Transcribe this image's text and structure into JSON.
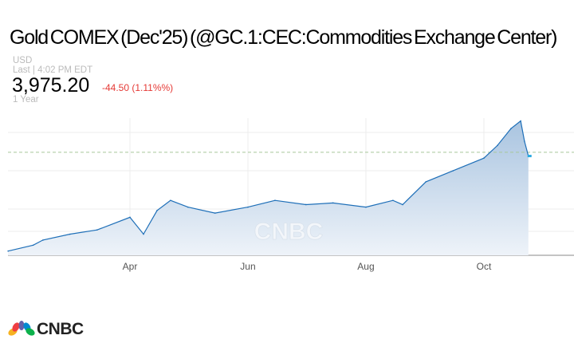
{
  "header": {
    "title": "Gold COMEX (Dec'25) (@GC.1:CEC:Commodities Exchange Center)",
    "currency": "USD",
    "last_label": "Last | 4:02 PM EDT",
    "price": "3,975.20",
    "change": "-44.50 (1.11%%)",
    "range": "1 Year"
  },
  "colors": {
    "line": "#1e6fb8",
    "fill_top": "#a9c4e0",
    "fill_bottom": "#eef3f9",
    "ref_line": "#a8c89a",
    "last_marker": "#29aae1",
    "change": "#e53935"
  },
  "brand": {
    "logo_text": "CNBC",
    "watermark": "CNBC"
  },
  "chart_data": {
    "type": "area",
    "title": "Gold COMEX (Dec'25)",
    "x_ticks": [
      "Apr",
      "Jun",
      "Aug",
      "Oct"
    ],
    "ylim": [
      2800,
      4500
    ],
    "grid": true,
    "reference_line": 4019.7,
    "points": [
      [
        "2025-01-28",
        2850
      ],
      [
        "2025-02-10",
        2920
      ],
      [
        "2025-02-15",
        2980
      ],
      [
        "2025-03-01",
        3050
      ],
      [
        "2025-03-15",
        3100
      ],
      [
        "2025-04-01",
        3250
      ],
      [
        "2025-04-08",
        3050
      ],
      [
        "2025-04-15",
        3330
      ],
      [
        "2025-04-22",
        3450
      ],
      [
        "2025-05-01",
        3370
      ],
      [
        "2025-05-15",
        3300
      ],
      [
        "2025-06-01",
        3370
      ],
      [
        "2025-06-15",
        3450
      ],
      [
        "2025-07-01",
        3400
      ],
      [
        "2025-07-15",
        3420
      ],
      [
        "2025-08-01",
        3370
      ],
      [
        "2025-08-15",
        3450
      ],
      [
        "2025-08-20",
        3400
      ],
      [
        "2025-09-01",
        3670
      ],
      [
        "2025-09-15",
        3800
      ],
      [
        "2025-10-01",
        3950
      ],
      [
        "2025-10-08",
        4100
      ],
      [
        "2025-10-15",
        4300
      ],
      [
        "2025-10-20",
        4390
      ],
      [
        "2025-10-22",
        4150
      ],
      [
        "2025-10-24",
        3975.2
      ]
    ]
  }
}
